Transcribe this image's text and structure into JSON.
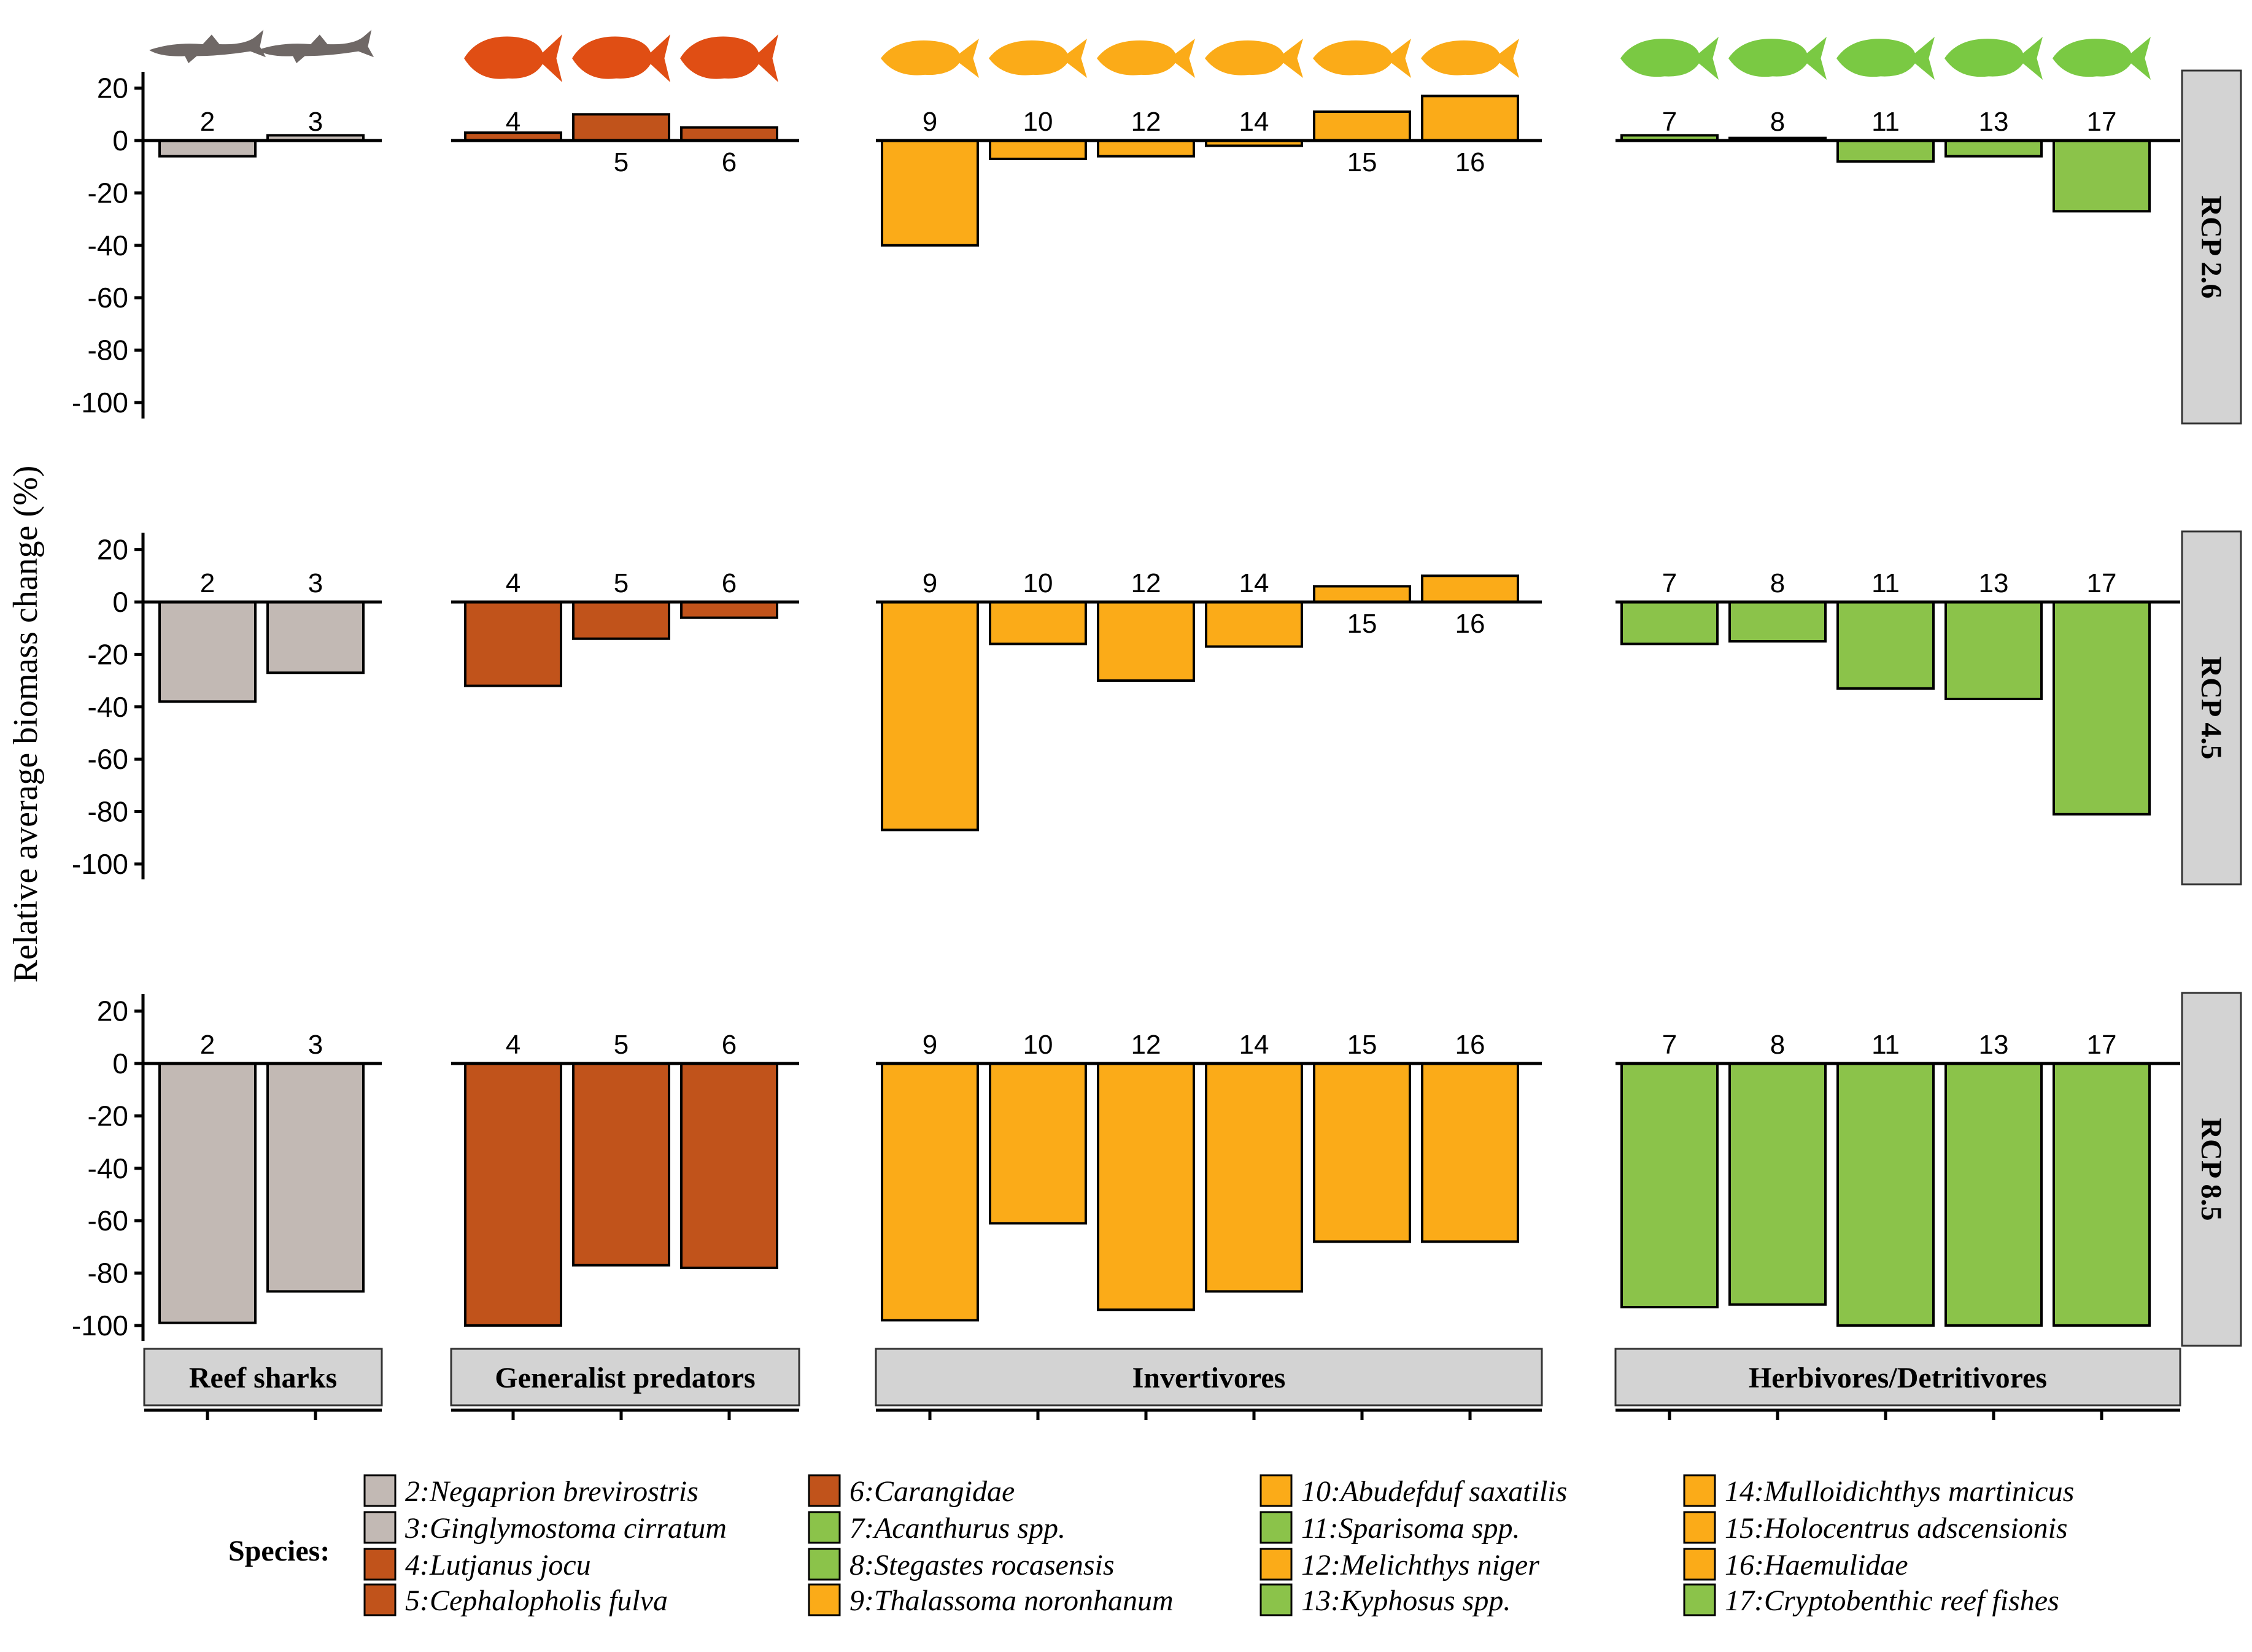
{
  "chart_data": {
    "type": "bar",
    "ylabel": "Relative average biomass change (%)",
    "ylim": [
      -105,
      25
    ],
    "yticks": [
      20,
      0,
      -20,
      -40,
      -60,
      -80,
      -100
    ],
    "groups": [
      {
        "name": "Reef sharks",
        "species": [
          "2",
          "3"
        ],
        "color": "#c2b9b4",
        "icon_color": "#6f6866",
        "icon": "shark-silhouette-icon"
      },
      {
        "name": "Generalist predators",
        "species": [
          "4",
          "5",
          "6"
        ],
        "color": "#c1531b",
        "icon_color": "#e04e14",
        "icon": "predator-fish-silhouette-icon"
      },
      {
        "name": "Invertivores",
        "species": [
          "9",
          "10",
          "12",
          "14",
          "15",
          "16"
        ],
        "color": "#fbab18",
        "icon_color": "#fbab18",
        "icon": "invertivore-fish-silhouette-icon"
      },
      {
        "name": "Herbivores/Detritivores",
        "species": [
          "7",
          "8",
          "11",
          "13",
          "17"
        ],
        "color": "#8bc34a",
        "icon_color": "#7ac943",
        "icon": "herbivore-fish-silhouette-icon"
      }
    ],
    "scenarios": [
      {
        "name": "RCP 2.6",
        "values": {
          "2": -6,
          "3": 2,
          "4": 3,
          "5": 10,
          "6": 5,
          "9": -40,
          "10": -7,
          "12": -6,
          "14": -2,
          "15": 11,
          "16": 17,
          "7": 2,
          "8": 1,
          "11": -8,
          "13": -6,
          "17": -27
        }
      },
      {
        "name": "RCP 4.5",
        "values": {
          "2": -38,
          "3": -27,
          "4": -32,
          "5": -14,
          "6": -6,
          "9": -87,
          "10": -16,
          "12": -30,
          "14": -17,
          "15": 6,
          "16": 10,
          "7": -16,
          "8": -15,
          "11": -33,
          "13": -37,
          "17": -81
        }
      },
      {
        "name": "RCP 8.5",
        "values": {
          "2": -99,
          "3": -87,
          "4": -100,
          "5": -77,
          "6": -78,
          "9": -98,
          "10": -61,
          "12": -94,
          "14": -87,
          "15": -68,
          "16": -68,
          "7": -93,
          "8": -92,
          "11": -100,
          "13": -100,
          "17": -100
        }
      }
    ],
    "legend": {
      "title": "Species:",
      "placement": "bottom",
      "columns": [
        [
          {
            "label": "2:Negaprion brevirostris",
            "color": "#c2b9b4"
          },
          {
            "label": "3:Ginglymostoma cirratum",
            "color": "#c2b9b4"
          },
          {
            "label": "4:Lutjanus jocu",
            "color": "#c1531b"
          },
          {
            "label": "5:Cephalopholis fulva",
            "color": "#c1531b"
          }
        ],
        [
          {
            "label": "6:Carangidae",
            "color": "#c1531b"
          },
          {
            "label": "7:Acanthurus spp.",
            "color": "#8bc34a"
          },
          {
            "label": "8:Stegastes rocasensis",
            "color": "#8bc34a"
          },
          {
            "label": "9:Thalassoma noronhanum",
            "color": "#fbab18"
          }
        ],
        [
          {
            "label": "10:Abudefduf saxatilis",
            "color": "#fbab18"
          },
          {
            "label": "11:Sparisoma spp.",
            "color": "#8bc34a"
          },
          {
            "label": "12:Melichthys niger",
            "color": "#fbab18"
          },
          {
            "label": "13:Kyphosus spp.",
            "color": "#8bc34a"
          }
        ],
        [
          {
            "label": "14:Mulloidichthys martinicus",
            "color": "#fbab18"
          },
          {
            "label": "15:Holocentrus adscensionis",
            "color": "#fbab18"
          },
          {
            "label": "16:Haemulidae",
            "color": "#fbab18"
          },
          {
            "label": "17:Cryptobenthic reef fishes",
            "color": "#8bc34a"
          }
        ]
      ]
    },
    "grid": false
  }
}
